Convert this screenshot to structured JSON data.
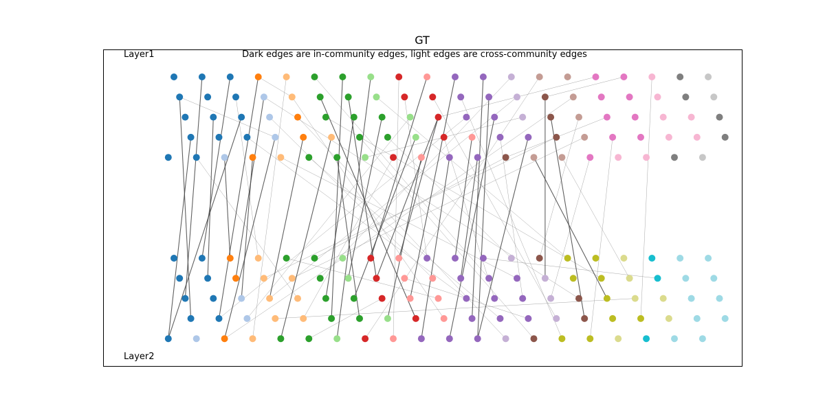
{
  "figure": {
    "title": "GT",
    "subtitle": "Dark edges are in-community edges, light edges are cross-community edges",
    "layer_top_label": "Layer1",
    "layer_bottom_label": "Layer2"
  },
  "palette": [
    "#1f77b4",
    "#aec7e8",
    "#ff7f0e",
    "#ffbb78",
    "#2ca02c",
    "#98df8a",
    "#d62728",
    "#ff9896",
    "#9467bd",
    "#c5b0d5",
    "#8c564b",
    "#c49c94",
    "#e377c2",
    "#f7b6d2",
    "#7f7f7f",
    "#c7c7c7",
    "#bcbd22",
    "#dbdb8d",
    "#17becf",
    "#9edae5"
  ],
  "style": {
    "dark_edge_color": "#444444",
    "light_edge_color": "#888888"
  },
  "chart_data": {
    "type": "multilayer-network",
    "layers": [
      {
        "name": "Layer1",
        "rows": [
          {
            "count": 20,
            "colors": [
              0,
              0,
              0,
              2,
              3,
              4,
              4,
              5,
              6,
              7,
              8,
              8,
              9,
              11,
              11,
              12,
              12,
              13,
              14,
              15
            ]
          },
          {
            "count": 20,
            "colors": [
              0,
              0,
              0,
              1,
              3,
              4,
              4,
              5,
              6,
              6,
              8,
              8,
              9,
              10,
              11,
              12,
              12,
              13,
              14,
              15
            ]
          },
          {
            "count": 20,
            "colors": [
              0,
              0,
              0,
              1,
              2,
              4,
              4,
              4,
              5,
              6,
              8,
              8,
              9,
              10,
              11,
              12,
              12,
              13,
              13,
              14
            ]
          },
          {
            "count": 20,
            "colors": [
              0,
              0,
              0,
              1,
              2,
              3,
              4,
              4,
              5,
              6,
              7,
              8,
              8,
              10,
              11,
              12,
              12,
              13,
              13,
              14
            ]
          },
          {
            "count": 20,
            "colors": [
              0,
              0,
              1,
              2,
              3,
              4,
              4,
              5,
              6,
              7,
              8,
              8,
              10,
              11,
              11,
              12,
              13,
              13,
              14,
              15
            ]
          }
        ]
      },
      {
        "name": "Layer2",
        "rows": [
          {
            "count": 20,
            "colors": [
              0,
              0,
              2,
              3,
              4,
              4,
              5,
              6,
              7,
              8,
              8,
              8,
              9,
              10,
              16,
              16,
              17,
              18,
              19,
              19
            ]
          },
          {
            "count": 20,
            "colors": [
              0,
              0,
              2,
              3,
              3,
              4,
              5,
              6,
              7,
              7,
              8,
              8,
              8,
              9,
              16,
              16,
              17,
              18,
              19,
              19
            ]
          },
          {
            "count": 20,
            "colors": [
              0,
              0,
              1,
              3,
              3,
              4,
              4,
              6,
              7,
              7,
              8,
              8,
              8,
              9,
              10,
              16,
              17,
              17,
              19,
              19
            ]
          },
          {
            "count": 20,
            "colors": [
              0,
              0,
              1,
              3,
              3,
              4,
              4,
              5,
              6,
              7,
              8,
              8,
              8,
              9,
              10,
              16,
              16,
              17,
              19,
              19
            ]
          },
          {
            "count": 20,
            "colors": [
              0,
              1,
              2,
              3,
              4,
              4,
              5,
              6,
              7,
              8,
              8,
              8,
              9,
              10,
              16,
              16,
              17,
              18,
              19,
              19
            ]
          }
        ]
      }
    ],
    "dark_edges": [
      [
        0,
        3,
        0,
        1,
        4,
        0
      ],
      [
        0,
        1,
        0,
        1,
        3,
        0
      ],
      [
        0,
        0,
        1,
        1,
        2,
        0
      ],
      [
        0,
        2,
        1,
        1,
        1,
        1
      ],
      [
        0,
        0,
        2,
        1,
        0,
        1
      ],
      [
        0,
        2,
        2,
        1,
        4,
        0
      ],
      [
        0,
        0,
        3,
        1,
        3,
        1
      ],
      [
        0,
        1,
        3,
        1,
        1,
        2
      ],
      [
        0,
        4,
        2,
        1,
        0,
        2
      ],
      [
        0,
        3,
        3,
        1,
        4,
        2
      ],
      [
        0,
        4,
        3,
        1,
        2,
        2
      ],
      [
        0,
        3,
        4,
        1,
        2,
        3
      ],
      [
        0,
        3,
        5,
        1,
        4,
        4
      ],
      [
        0,
        0,
        6,
        1,
        3,
        5
      ],
      [
        0,
        2,
        6,
        1,
        2,
        5
      ],
      [
        0,
        4,
        6,
        1,
        3,
        6
      ],
      [
        0,
        0,
        7,
        1,
        4,
        6
      ],
      [
        0,
        3,
        8,
        1,
        2,
        6
      ],
      [
        0,
        0,
        9,
        1,
        0,
        7
      ],
      [
        0,
        2,
        9,
        1,
        1,
        7
      ],
      [
        0,
        4,
        9,
        1,
        3,
        7
      ],
      [
        0,
        0,
        10,
        1,
        2,
        8
      ],
      [
        0,
        4,
        10,
        1,
        4,
        9
      ],
      [
        0,
        0,
        11,
        1,
        3,
        10
      ],
      [
        0,
        2,
        11,
        1,
        4,
        10
      ],
      [
        0,
        4,
        11,
        1,
        1,
        10
      ],
      [
        0,
        3,
        12,
        1,
        4,
        11
      ],
      [
        0,
        1,
        13,
        1,
        1,
        13
      ],
      [
        0,
        2,
        13,
        1,
        3,
        14
      ],
      [
        0,
        4,
        13,
        1,
        2,
        15
      ],
      [
        0,
        1,
        5,
        1,
        3,
        8
      ],
      [
        0,
        2,
        7,
        1,
        1,
        6
      ],
      [
        0,
        3,
        10,
        1,
        0,
        10
      ],
      [
        0,
        1,
        11,
        1,
        4,
        11
      ],
      [
        0,
        2,
        9,
        1,
        0,
        8
      ],
      [
        0,
        1,
        6,
        1,
        1,
        7
      ]
    ],
    "light_edges": [
      [
        0,
        0,
        3,
        0,
        1,
        4
      ],
      [
        0,
        1,
        0,
        0,
        3,
        3
      ],
      [
        0,
        4,
        1,
        1,
        2,
        4
      ],
      [
        0,
        1,
        4,
        1,
        3,
        9
      ],
      [
        0,
        2,
        4,
        1,
        4,
        12
      ],
      [
        0,
        0,
        5,
        1,
        1,
        11
      ],
      [
        0,
        1,
        7,
        1,
        0,
        14
      ],
      [
        0,
        3,
        2,
        1,
        2,
        10
      ],
      [
        0,
        4,
        5,
        1,
        3,
        11
      ],
      [
        0,
        0,
        8,
        1,
        4,
        8
      ],
      [
        0,
        2,
        3,
        1,
        1,
        9
      ],
      [
        0,
        4,
        8,
        1,
        3,
        4
      ],
      [
        0,
        1,
        8,
        1,
        0,
        9
      ],
      [
        0,
        3,
        9,
        1,
        2,
        11
      ],
      [
        0,
        0,
        12,
        1,
        1,
        5
      ],
      [
        0,
        2,
        12,
        0,
        4,
        7
      ],
      [
        0,
        1,
        14,
        1,
        0,
        6
      ],
      [
        0,
        0,
        15,
        0,
        2,
        9
      ],
      [
        0,
        3,
        14,
        1,
        1,
        4
      ],
      [
        0,
        2,
        15,
        0,
        4,
        12
      ],
      [
        0,
        1,
        9,
        1,
        3,
        13
      ],
      [
        0,
        3,
        6,
        1,
        4,
        13
      ],
      [
        0,
        0,
        13,
        1,
        4,
        7
      ],
      [
        0,
        2,
        5,
        1,
        1,
        15
      ],
      [
        0,
        4,
        12,
        1,
        0,
        5
      ],
      [
        0,
        1,
        12,
        1,
        2,
        3
      ],
      [
        0,
        3,
        11,
        1,
        2,
        12
      ],
      [
        0,
        0,
        16,
        0,
        1,
        13
      ],
      [
        0,
        2,
        8,
        1,
        3,
        2
      ],
      [
        0,
        4,
        4,
        1,
        1,
        12
      ],
      [
        1,
        0,
        4,
        1,
        2,
        9
      ],
      [
        1,
        1,
        8,
        1,
        3,
        12
      ],
      [
        1,
        2,
        7,
        1,
        4,
        5
      ],
      [
        1,
        0,
        11,
        1,
        1,
        17
      ],
      [
        1,
        3,
        3,
        1,
        2,
        16
      ],
      [
        1,
        4,
        2,
        1,
        0,
        6
      ],
      [
        0,
        3,
        7,
        1,
        0,
        12
      ],
      [
        0,
        1,
        3,
        1,
        2,
        14
      ],
      [
        0,
        0,
        4,
        1,
        4,
        3
      ],
      [
        0,
        2,
        10,
        1,
        3,
        1
      ],
      [
        0,
        3,
        13,
        1,
        1,
        3
      ],
      [
        0,
        4,
        15,
        1,
        2,
        13
      ],
      [
        0,
        0,
        17,
        1,
        3,
        16
      ],
      [
        0,
        1,
        10,
        1,
        4,
        14
      ],
      [
        0,
        2,
        14,
        1,
        0,
        13
      ],
      [
        0,
        3,
        15,
        1,
        4,
        15
      ],
      [
        0,
        4,
        14,
        1,
        1,
        16
      ],
      [
        0,
        1,
        2,
        1,
        0,
        3
      ]
    ]
  }
}
